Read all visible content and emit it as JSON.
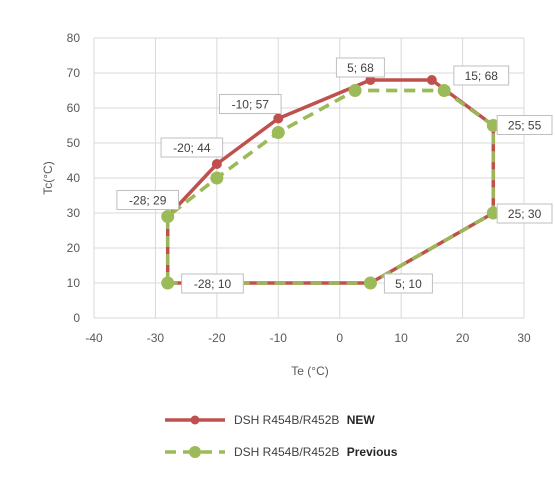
{
  "chart_data": {
    "type": "line",
    "xlabel": "Te (°C)",
    "ylabel": "Tc(°C)",
    "xlim": [
      -40,
      30
    ],
    "ylim": [
      0,
      80
    ],
    "x_ticks": [
      "-40",
      "-30",
      "-20",
      "-10",
      "0",
      "10",
      "20",
      "30"
    ],
    "y_ticks": [
      "0",
      "10",
      "20",
      "30",
      "40",
      "50",
      "60",
      "70",
      "80"
    ],
    "grid": true,
    "legend_position": "bottom",
    "series": [
      {
        "name": "DSH R454B/R452B",
        "name_suffix": "NEW",
        "color": "#c0504d",
        "style": "solid",
        "points": [
          [
            -28,
            10
          ],
          [
            -28,
            29
          ],
          [
            -20,
            44
          ],
          [
            -10,
            57
          ],
          [
            5,
            68
          ],
          [
            15,
            68
          ],
          [
            25,
            55
          ],
          [
            25,
            30
          ],
          [
            5,
            10
          ],
          [
            -28,
            10
          ]
        ]
      },
      {
        "name": "DSH R454B/R452B",
        "name_suffix": "Previous",
        "color": "#9bbb59",
        "style": "dashed",
        "points": [
          [
            -28,
            10
          ],
          [
            -28,
            29
          ],
          [
            -20,
            40
          ],
          [
            -10,
            53
          ],
          [
            2.5,
            65
          ],
          [
            17,
            65
          ],
          [
            25,
            55
          ],
          [
            25,
            30
          ],
          [
            5,
            10
          ],
          [
            -28,
            10
          ]
        ]
      }
    ],
    "annotations": [
      {
        "text": "5; 68",
        "x": 5,
        "y": 68
      },
      {
        "text": "15; 68",
        "x": 15,
        "y": 68
      },
      {
        "text": "-10; 57",
        "x": -10,
        "y": 57
      },
      {
        "text": "25; 55",
        "x": 25,
        "y": 55
      },
      {
        "text": "-20; 44",
        "x": -20,
        "y": 44
      },
      {
        "text": "-28; 29",
        "x": -28,
        "y": 29
      },
      {
        "text": "25; 30",
        "x": 25,
        "y": 30
      },
      {
        "text": "-28; 10",
        "x": -28,
        "y": 10
      },
      {
        "text": "5; 10",
        "x": 5,
        "y": 10
      }
    ]
  }
}
